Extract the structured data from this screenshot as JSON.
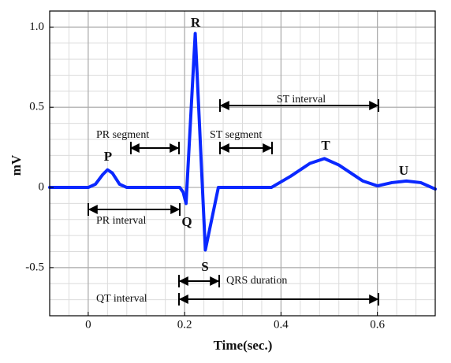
{
  "chart_data": {
    "type": "line",
    "xlabel": "Time(sec.)",
    "ylabel": "mV",
    "x": [
      -0.08,
      0,
      0.015,
      0.03,
      0.04,
      0.05,
      0.065,
      0.08,
      0.19,
      0.197,
      0.203,
      0.222,
      0.243,
      0.27,
      0.38,
      0.42,
      0.46,
      0.49,
      0.52,
      0.57,
      0.6,
      0.63,
      0.66,
      0.69,
      0.72
    ],
    "series": [
      {
        "color": "#0a28ff",
        "values": [
          0,
          0,
          0.02,
          0.08,
          0.11,
          0.09,
          0.02,
          0,
          0,
          -0.03,
          -0.1,
          0.96,
          -0.39,
          0,
          0,
          0.07,
          0.15,
          0.18,
          0.14,
          0.04,
          0.01,
          0.03,
          0.04,
          0.03,
          -0.01
        ]
      }
    ],
    "xlim": [
      -0.08,
      0.72
    ],
    "ylim": [
      -0.8,
      1.1
    ],
    "xticks": [
      0,
      0.2,
      0.4,
      0.6
    ],
    "yticks": [
      -0.5,
      0,
      0.5,
      {
        "value": 1,
        "label": "1.0"
      }
    ],
    "xminorticks": [
      -0.08,
      -0.04,
      0,
      0.04,
      0.08,
      0.12,
      0.16,
      0.2,
      0.24,
      0.28,
      0.32,
      0.36,
      0.4,
      0.44,
      0.48,
      0.52,
      0.56,
      0.6,
      0.64,
      0.68,
      0.72
    ],
    "yminorticks": [
      -0.8,
      -0.7,
      -0.6,
      -0.5,
      -0.4,
      -0.3,
      -0.2,
      -0.1,
      0,
      0.1,
      0.2,
      0.3,
      0.4,
      0.5,
      0.6,
      0.7,
      0.8,
      0.9,
      1,
      1.1
    ],
    "grid": true,
    "wave_labels": [
      "P",
      "Q",
      "R",
      "S",
      "T",
      "U"
    ],
    "interval_labels": [
      "PR segment",
      "ST segment",
      "ST interval",
      "PR interval",
      "QRS duration",
      "QT interval"
    ]
  }
}
